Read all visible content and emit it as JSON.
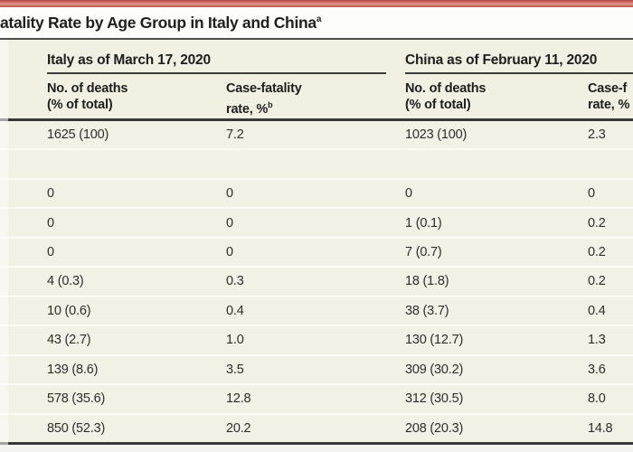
{
  "accent_color": "#c5564f",
  "title": {
    "fragment": "atality Rate by Age Group in Italy and China",
    "superscript": "a"
  },
  "table": {
    "col_groups": [
      {
        "label": "Italy as of March 17, 2020"
      },
      {
        "label": "China as of February 11, 2020"
      }
    ],
    "sub_headers": [
      {
        "line1": "No. of deaths",
        "line2": "(% of total)",
        "sup": ""
      },
      {
        "line1": "Case-fatality",
        "line2": "rate, %",
        "sup": "b"
      },
      {
        "line1": "No. of deaths",
        "line2": "(% of total)",
        "sup": ""
      },
      {
        "line1": "Case-f",
        "line2": "rate, %",
        "sup": ""
      }
    ],
    "rows": [
      [
        "1625 (100)",
        "7.2",
        "1023 (100)",
        "2.3"
      ],
      [
        "",
        "",
        "",
        ""
      ],
      [
        "0",
        "0",
        "0",
        "0"
      ],
      [
        "0",
        "0",
        "1 (0.1)",
        "0.2"
      ],
      [
        "0",
        "0",
        "7 (0.7)",
        "0.2"
      ],
      [
        "4 (0.3)",
        "0.3",
        "18 (1.8)",
        "0.2"
      ],
      [
        "10 (0.6)",
        "0.4",
        "38 (3.7)",
        "0.4"
      ],
      [
        "43 (2.7)",
        "1.0",
        "130 (12.7)",
        "1.3"
      ],
      [
        "139 (8.6)",
        "3.5",
        "309 (30.2)",
        "3.6"
      ],
      [
        "578 (35.6)",
        "12.8",
        "312 (30.5)",
        "8.0"
      ],
      [
        "850 (52.3)",
        "20.2",
        "208 (20.3)",
        "14.8"
      ]
    ]
  }
}
